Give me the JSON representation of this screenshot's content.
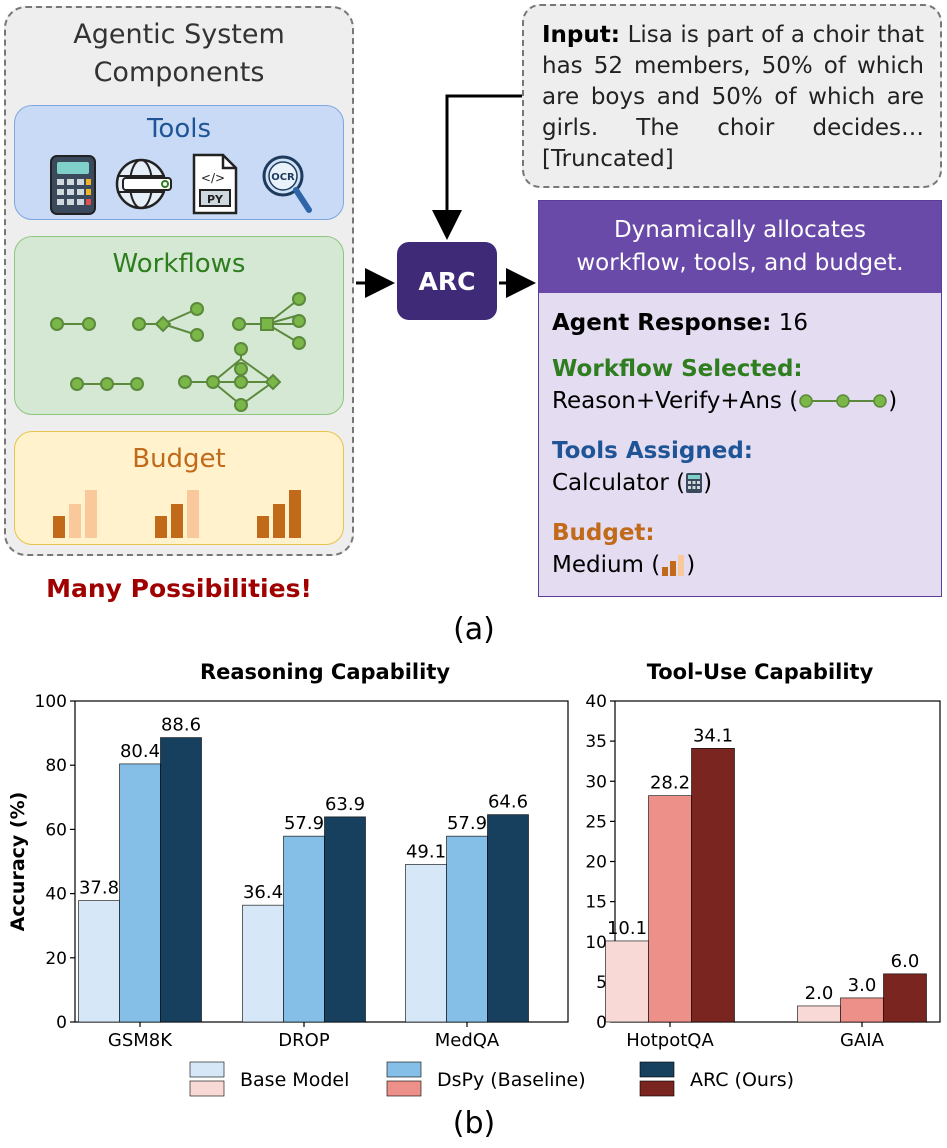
{
  "panel_a": {
    "components_title": "Agentic System Components",
    "tools_title": "Tools",
    "tool_icons": [
      "calculator-icon",
      "web-search-icon",
      "python-file-icon",
      "ocr-icon"
    ],
    "workflows_title": "Workflows",
    "budget_title": "Budget",
    "many_possibilities": "Many Possibilities!",
    "input_label": "Input:",
    "input_text": "Lisa is part of a choir that has 52 members, 50% of which are boys and 50% of which are girls. The choir decides… [Truncated]",
    "arc_label": "ARC",
    "response_header": "Dynamically allocates workflow, tools, and budget.",
    "agent_response_label": "Agent Response:",
    "agent_response_value": "16",
    "workflow_label": "Workflow Selected:",
    "workflow_value": "Reason+Verify+Ans (",
    "tools_label": "Tools Assigned:",
    "tools_value": "Calculator (",
    "budget_label": "Budget:",
    "budget_value": "Medium (",
    "close_paren": ")",
    "caption": "(a)",
    "colors": {
      "tools": "#c8daf5",
      "workflows": "#d5e8d4",
      "budget": "#fff2cc",
      "arc": "#3f2a78",
      "response_header": "#6a4aa8",
      "response_body": "#e4dcf1"
    }
  },
  "panel_b": {
    "caption": "(b)",
    "legend_labels": [
      "Base Model",
      "DsPy (Baseline)",
      "ARC (Ours)"
    ]
  },
  "chart_data": [
    {
      "type": "bar",
      "title": "Reasoning Capability",
      "ylabel": "Accuracy (%)",
      "xlabel": "",
      "ylim": [
        0,
        100
      ],
      "yticks": [
        0,
        20,
        40,
        60,
        80,
        100
      ],
      "categories": [
        "GSM8K",
        "DROP",
        "MedQA"
      ],
      "series": [
        {
          "name": "Base Model",
          "color": "#d6e8f7",
          "values": [
            37.8,
            36.4,
            49.1
          ]
        },
        {
          "name": "DsPy (Baseline)",
          "color": "#85bfe8",
          "values": [
            80.4,
            57.9,
            57.9
          ]
        },
        {
          "name": "ARC (Ours)",
          "color": "#17405f",
          "values": [
            88.6,
            63.9,
            64.6
          ]
        }
      ]
    },
    {
      "type": "bar",
      "title": "Tool-Use Capability",
      "ylabel": "",
      "xlabel": "",
      "ylim": [
        0,
        40
      ],
      "yticks": [
        0,
        5,
        10,
        15,
        20,
        25,
        30,
        35,
        40
      ],
      "categories": [
        "HotpotQA",
        "GAIA"
      ],
      "series": [
        {
          "name": "Base Model",
          "color": "#f8d9d6",
          "values": [
            10.1,
            2.0
          ]
        },
        {
          "name": "DsPy (Baseline)",
          "color": "#ec9089",
          "values": [
            28.2,
            3.0
          ]
        },
        {
          "name": "ARC (Ours)",
          "color": "#7a2520",
          "values": [
            34.1,
            6.0
          ]
        }
      ]
    }
  ]
}
